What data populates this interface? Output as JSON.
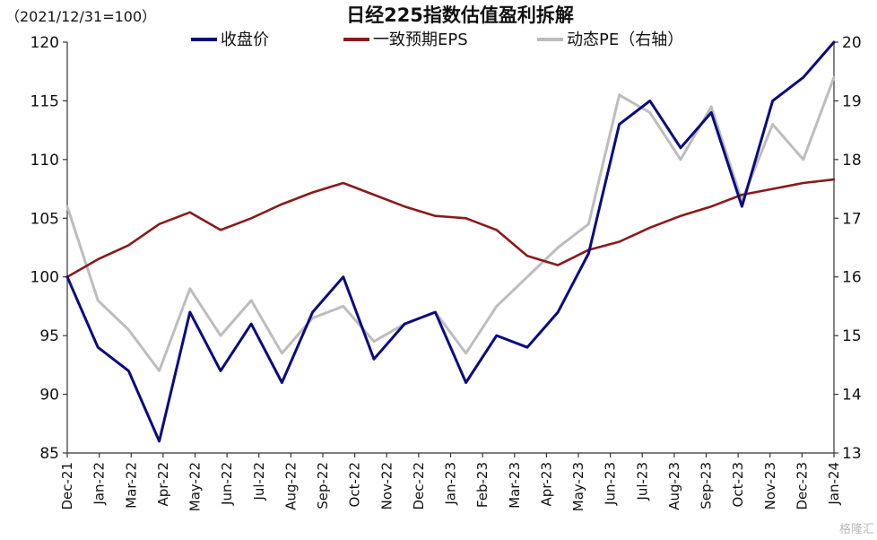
{
  "chart_data": {
    "type": "line",
    "title": "日经225指数估值盈利拆解",
    "left_unit_label": "（2021/12/31=100）",
    "left_axis": {
      "ylim": [
        85,
        120
      ],
      "ticks": [
        "85",
        "90",
        "95",
        "100",
        "105",
        "110",
        "115",
        "120"
      ]
    },
    "right_axis": {
      "ylim": [
        13,
        20
      ],
      "ticks": [
        "13",
        "14",
        "15",
        "16",
        "17",
        "18",
        "19",
        "20"
      ]
    },
    "grid": false,
    "legend_position": "top",
    "x_tick_labels": [
      "Dec-21",
      "Jan-22",
      "Mar-22",
      "Apr-22",
      "May-22",
      "Jun-22",
      "Jul-22",
      "Aug-22",
      "Sep-22",
      "Oct-22",
      "Nov-22",
      "Dec-22",
      "Jan-23",
      "Feb-23",
      "Mar-23",
      "Apr-23",
      "May-23",
      "Jun-23",
      "Jul-23",
      "Aug-23",
      "Sep-23",
      "Oct-23",
      "Nov-23",
      "Dec-23",
      "Jan-24"
    ],
    "x": [
      "Dec-21",
      "Jan-22",
      "Feb-22",
      "Mar-22",
      "Apr-22",
      "May-22",
      "Jun-22",
      "Jul-22",
      "Aug-22",
      "Sep-22",
      "Oct-22",
      "Nov-22",
      "Dec-22",
      "Jan-23",
      "Feb-23",
      "Mar-23",
      "Apr-23",
      "May-23",
      "Jun-23",
      "Jul-23",
      "Aug-23",
      "Sep-23",
      "Oct-23",
      "Nov-23",
      "Dec-23",
      "Jan-24"
    ],
    "series": [
      {
        "name": "收盘价",
        "axis": "left",
        "color": "#0a0a80",
        "values": [
          100,
          94,
          92,
          86,
          97,
          92,
          96,
          91,
          97,
          100,
          93,
          96,
          97,
          91,
          95,
          94,
          97,
          102,
          113,
          115,
          111,
          114,
          106,
          115,
          117,
          120
        ]
      },
      {
        "name": "一致预期EPS",
        "axis": "left",
        "color": "#8b1a1a",
        "values": [
          100,
          101.5,
          102.7,
          104.5,
          105.5,
          104,
          105,
          106.2,
          107.2,
          108,
          107,
          106,
          105.2,
          105,
          104,
          101.8,
          101,
          102.3,
          103,
          104.2,
          105.2,
          106,
          107,
          107.5,
          108,
          108.3
        ]
      },
      {
        "name": "动态PE（右轴）",
        "axis": "right",
        "color": "#bdbdbd",
        "values": [
          17.2,
          15.6,
          15.1,
          14.4,
          15.8,
          15.0,
          15.6,
          14.7,
          15.3,
          15.5,
          14.9,
          15.2,
          15.4,
          14.7,
          15.5,
          16.0,
          16.5,
          16.9,
          19.1,
          18.8,
          18.0,
          18.9,
          17.3,
          18.6,
          18.0,
          19.4
        ]
      }
    ]
  },
  "watermark_text": "格隆汇"
}
